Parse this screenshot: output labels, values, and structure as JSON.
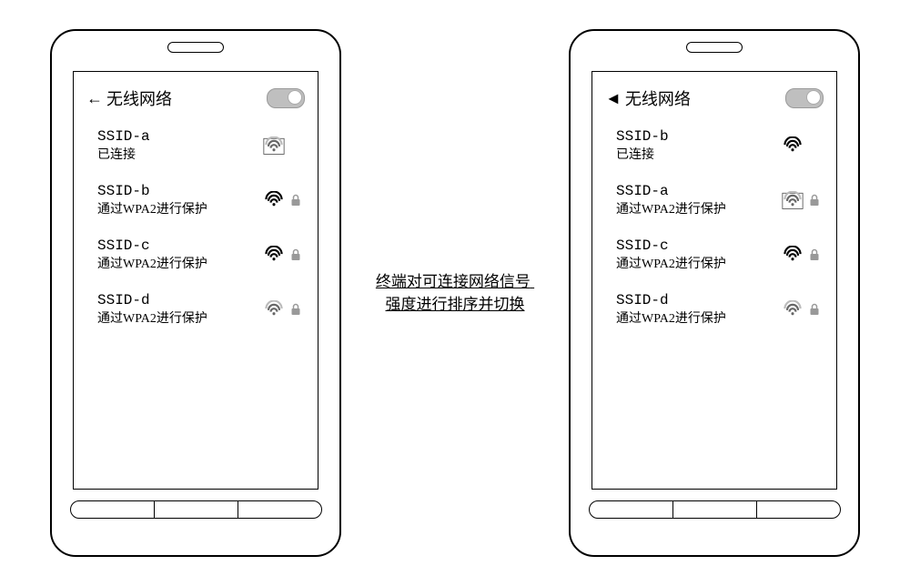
{
  "header": {
    "title": "无线网络"
  },
  "center": {
    "line1": "终端对可连接网络信号",
    "line2": "强度进行排序并切换"
  },
  "left_phone": {
    "items": [
      {
        "ssid": "SSID-a",
        "status": "已连接",
        "signal": "medium",
        "signal_color": "#666666",
        "has_lock": false,
        "boxed": true
      },
      {
        "ssid": "SSID-b",
        "status": "通过WPA2进行保护",
        "signal": "full",
        "signal_color": "#000000",
        "has_lock": true,
        "boxed": false
      },
      {
        "ssid": "SSID-c",
        "status": "通过WPA2进行保护",
        "signal": "full",
        "signal_color": "#000000",
        "has_lock": true,
        "boxed": false
      },
      {
        "ssid": "SSID-d",
        "status": "通过WPA2进行保护",
        "signal": "medium",
        "signal_color": "#666666",
        "has_lock": true,
        "boxed": false
      }
    ]
  },
  "right_phone": {
    "items": [
      {
        "ssid": "SSID-b",
        "status": "已连接",
        "signal": "full",
        "signal_color": "#000000",
        "has_lock": false,
        "boxed": false
      },
      {
        "ssid": "SSID-a",
        "status": "通过WPA2进行保护",
        "signal": "medium",
        "signal_color": "#666666",
        "has_lock": true,
        "boxed": true
      },
      {
        "ssid": "SSID-c",
        "status": "通过WPA2进行保护",
        "signal": "full",
        "signal_color": "#000000",
        "has_lock": true,
        "boxed": false
      },
      {
        "ssid": "SSID-d",
        "status": "通过WPA2进行保护",
        "signal": "medium",
        "signal_color": "#666666",
        "has_lock": true,
        "boxed": false
      }
    ]
  },
  "colors": {
    "toggle_bg": "#bfbfbf",
    "lock_fill": "#999999",
    "text": "#000000"
  }
}
